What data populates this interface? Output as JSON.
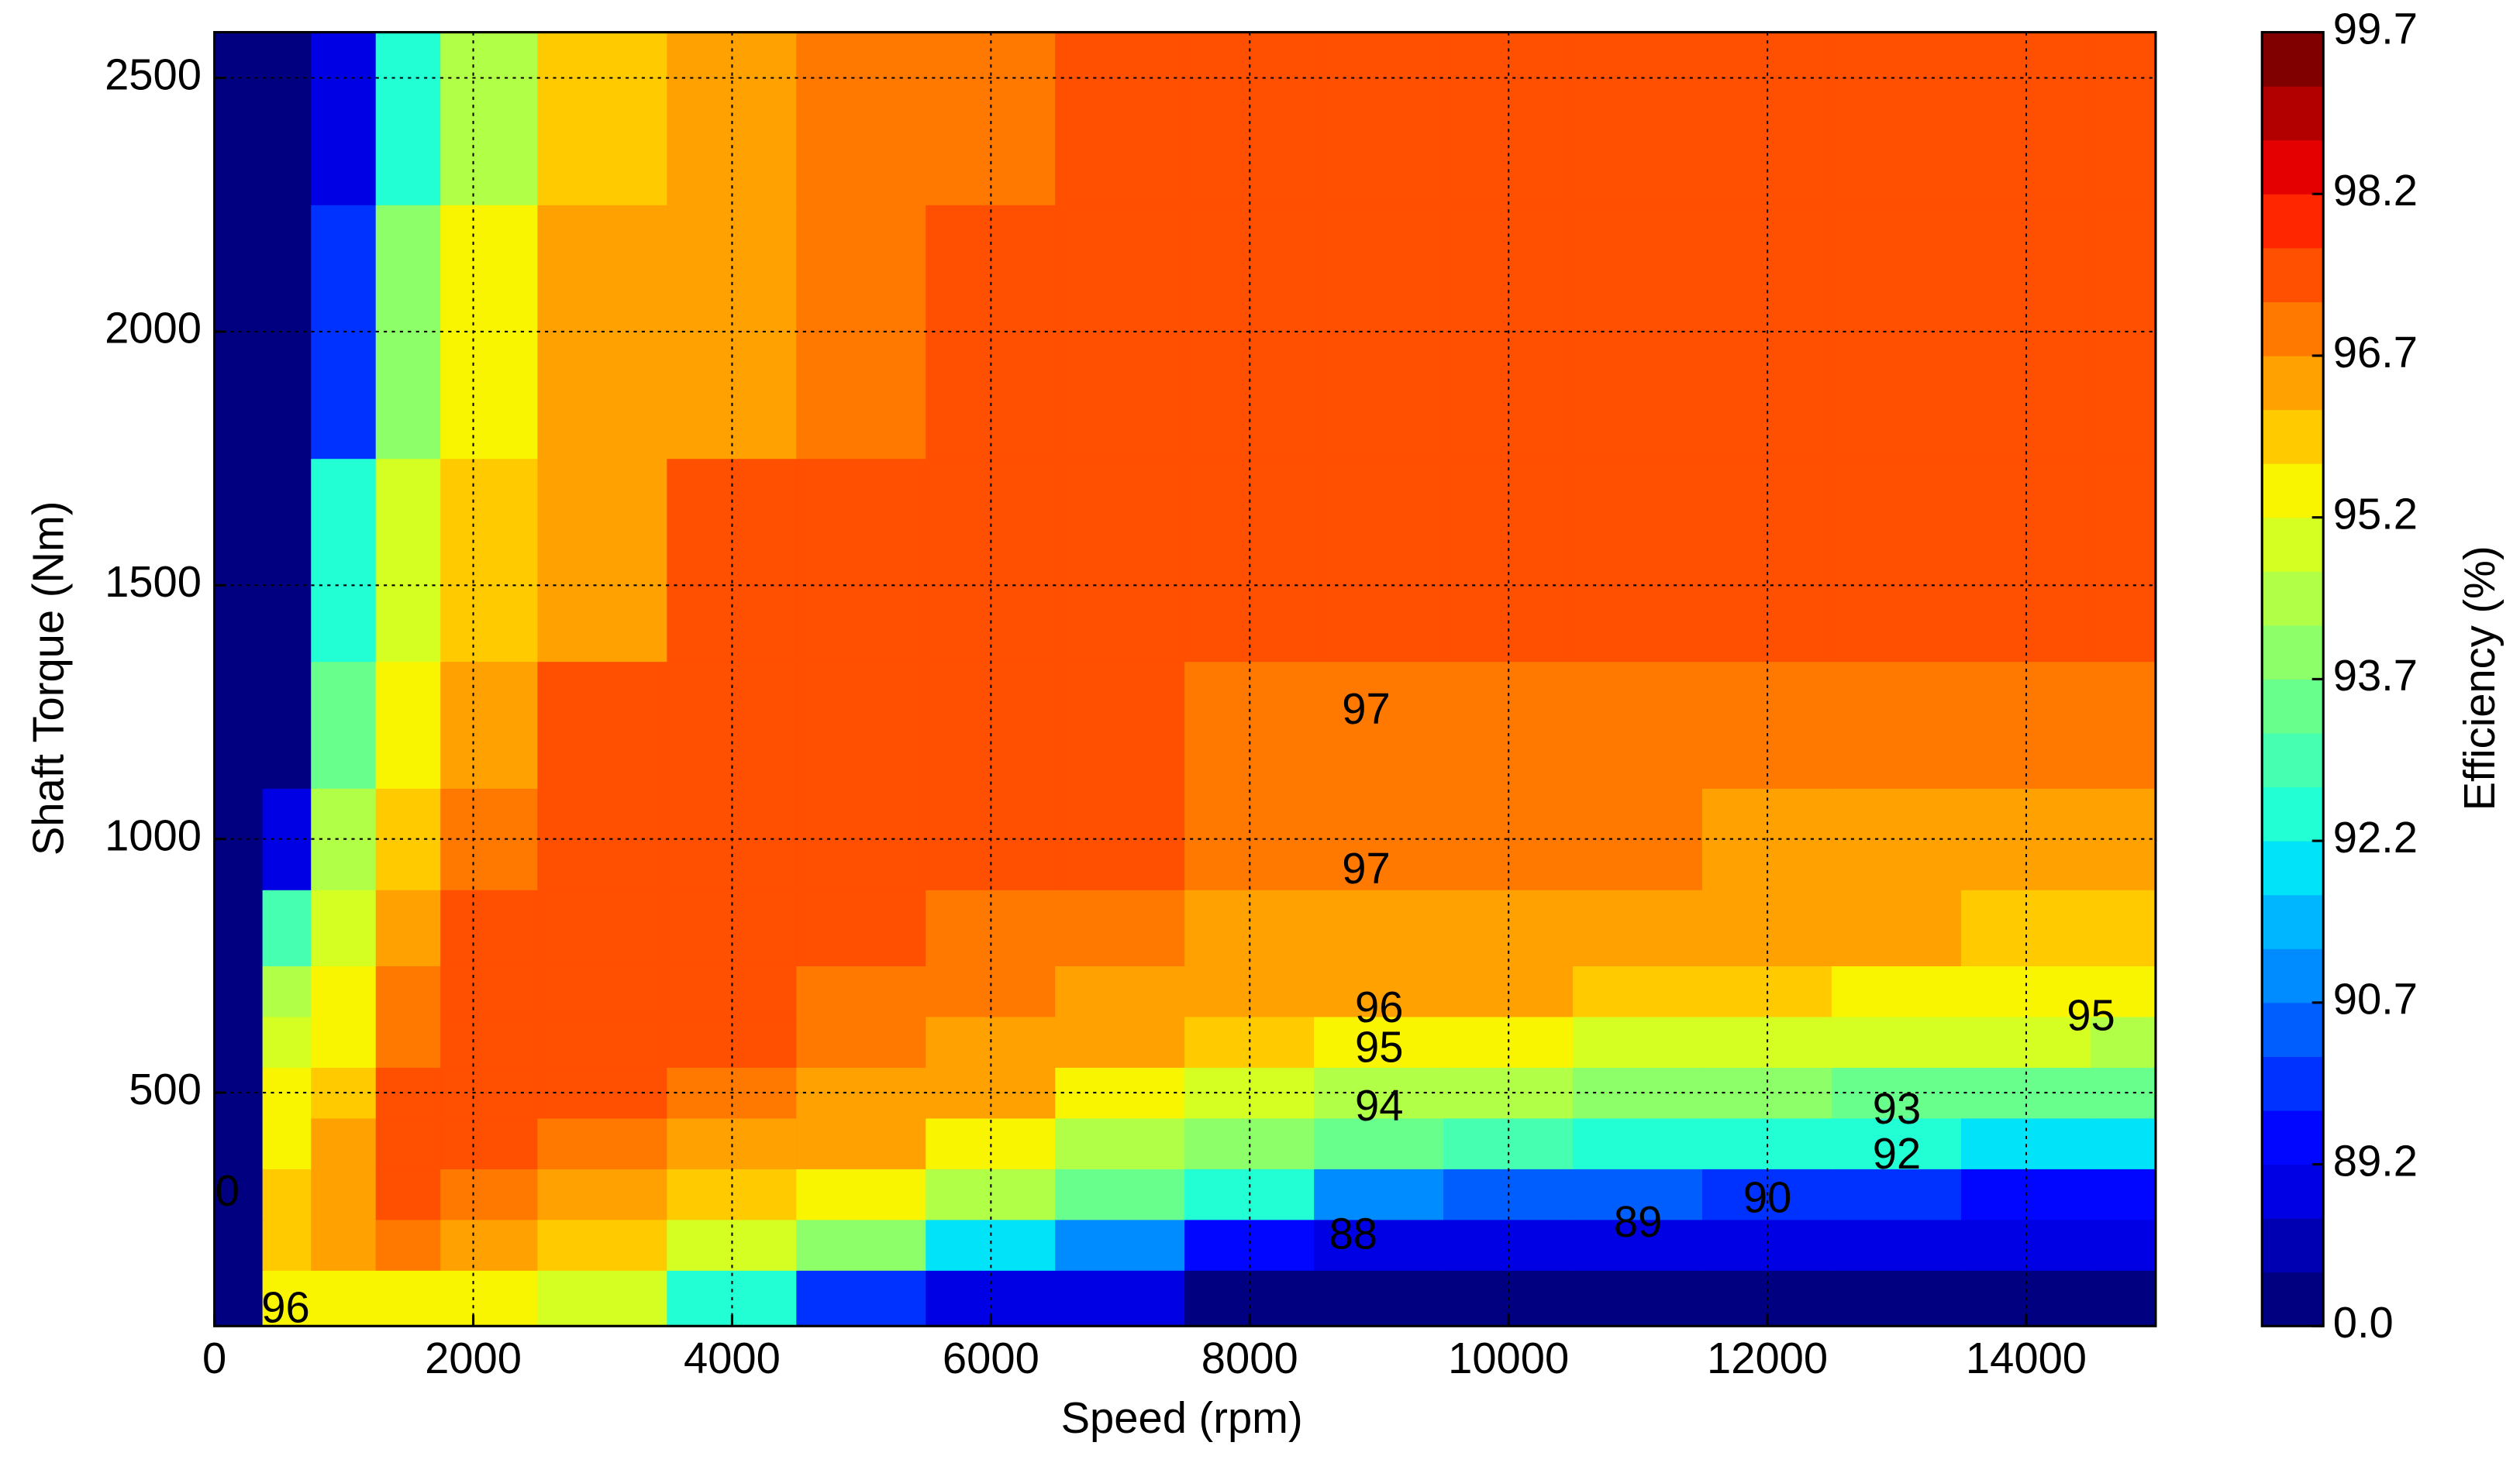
{
  "chart_data": {
    "type": "contour",
    "x_label": "Speed  (rpm)",
    "y_label": "Shaft Torque  (Nm)",
    "colorbar_label": "Efficiency (%)",
    "xlim": [
      0,
      15000
    ],
    "ylim": [
      40,
      2590
    ],
    "xticks": [
      0,
      2000,
      4000,
      6000,
      8000,
      10000,
      12000,
      14000
    ],
    "yticks": [
      500,
      1000,
      1500,
      2000,
      2500
    ],
    "grid": true,
    "colorbar_ticks": [
      {
        "value": 0,
        "label": "0.0"
      },
      89.2,
      90.7,
      92.2,
      93.7,
      95.2,
      96.7,
      98.2,
      99.7
    ],
    "colors": [
      "#000080",
      "#0000b2",
      "#0000e4",
      "#0006ff",
      "#0032ff",
      "#005eff",
      "#008bff",
      "#00b7ff",
      "#00e3f9",
      "#22ffd5",
      "#46ffb1",
      "#69ff8d",
      "#8dff69",
      "#b1ff46",
      "#d5ff22",
      "#f9f400",
      "#ffcb00",
      "#ffa100",
      "#ff7800",
      "#ff4f00",
      "#ff2600",
      "#e40000",
      "#b20000",
      "#800000"
    ],
    "x": [
      0,
      250,
      500,
      1000,
      1500,
      2000,
      3000,
      4000,
      5000,
      6000,
      7000,
      8000,
      9000,
      10000,
      11000,
      12000,
      13000,
      14000,
      15000
    ],
    "y": [
      100,
      200,
      300,
      400,
      500,
      600,
      700,
      800,
      1000,
      1200,
      1500,
      2000,
      2500
    ],
    "z": [
      [
        0,
        0,
        95.5,
        95.5,
        95.5,
        95.5,
        94.8,
        92.5,
        90,
        88,
        85,
        0,
        0,
        0,
        0,
        0,
        0,
        0,
        0
      ],
      [
        0,
        0,
        96,
        96.5,
        96.8,
        96.5,
        96.1,
        94.8,
        94,
        92,
        91,
        89.5,
        88.5,
        87,
        86,
        85,
        84,
        83,
        82
      ],
      [
        0,
        0,
        95.8,
        96.4,
        97.3,
        97.0,
        96.6,
        96.0,
        95.2,
        94.2,
        93.5,
        92.5,
        91,
        90.5,
        90.2,
        90.0,
        89.8,
        89.6,
        89.4
      ],
      [
        0,
        0,
        95.5,
        96.2,
        97.3,
        97.3,
        97.0,
        96.5,
        96.2,
        95.4,
        94.5,
        93.8,
        93.2,
        92.8,
        92.5,
        92.3,
        92.2,
        92.0,
        91.8
      ],
      [
        0,
        0,
        95.3,
        96.0,
        97.2,
        97.4,
        97.3,
        96.9,
        96.6,
        96.3,
        95.4,
        94.8,
        94.5,
        94.2,
        94.0,
        93.8,
        93.6,
        93.4,
        93.2
      ],
      [
        0,
        0,
        95.0,
        95.6,
        96.9,
        97.4,
        97.4,
        97.2,
        96.9,
        96.6,
        96.3,
        95.8,
        95.4,
        95.2,
        95.0,
        94.9,
        94.8,
        94.7,
        94.6
      ],
      [
        0,
        0,
        94.5,
        95.3,
        96.7,
        97.3,
        97.4,
        97.4,
        97.15,
        96.8,
        96.6,
        96.4,
        96.3,
        96.2,
        96.0,
        95.8,
        95.6,
        95.5,
        95.4
      ],
      [
        0,
        0,
        93.0,
        95.0,
        96.5,
        97.2,
        97.4,
        97.4,
        97.4,
        97.1,
        96.8,
        96.65,
        96.5,
        96.4,
        96.35,
        96.25,
        96.2,
        96.1,
        96.05
      ],
      [
        0,
        0,
        85,
        94.2,
        96.0,
        96.9,
        97.4,
        97.4,
        97.4,
        97.4,
        97.2,
        96.9,
        96.8,
        96.75,
        96.7,
        96.6,
        96.6,
        96.5,
        96.45
      ],
      [
        0,
        0,
        0,
        93.5,
        95.6,
        96.6,
        97.2,
        97.4,
        97.4,
        97.4,
        97.4,
        97.15,
        97.0,
        97.0,
        96.95,
        96.9,
        96.85,
        96.8,
        96.75
      ],
      [
        0,
        0,
        0,
        92.5,
        95.0,
        95.8,
        96.6,
        97.3,
        97.4,
        97.4,
        97.4,
        97.4,
        97.4,
        97.4,
        97.35,
        97.3,
        97.3,
        97.25,
        97.2
      ],
      [
        0,
        0,
        0,
        90,
        93.8,
        95.2,
        96.2,
        96.6,
        97.1,
        97.4,
        97.4,
        97.4,
        97.4,
        97.4,
        97.4,
        97.4,
        97.4,
        97.4,
        97.4
      ],
      [
        0,
        0,
        0,
        88,
        92.5,
        94.5,
        95.9,
        96.4,
        96.9,
        97.1,
        97.4,
        97.4,
        97.4,
        97.4,
        97.4,
        97.4,
        97.4,
        97.4,
        97.4
      ]
    ],
    "contour_labels": [
      {
        "text": "97",
        "x": 8900,
        "y": 1250
      },
      {
        "text": "97",
        "x": 8900,
        "y": 935
      },
      {
        "text": "96",
        "x": 9000,
        "y": 662
      },
      {
        "text": "95",
        "x": 9000,
        "y": 583
      },
      {
        "text": "94",
        "x": 9000,
        "y": 468
      },
      {
        "text": "95",
        "x": 14500,
        "y": 646
      },
      {
        "text": "93",
        "x": 13000,
        "y": 462
      },
      {
        "text": "92",
        "x": 13000,
        "y": 373
      },
      {
        "text": "90",
        "x": 12000,
        "y": 287
      },
      {
        "text": "89",
        "x": 11000,
        "y": 239
      },
      {
        "text": "88",
        "x": 8800,
        "y": 215
      },
      {
        "text": "0",
        "x": 100,
        "y": 300
      },
      {
        "text": "96",
        "x": 550,
        "y": 70
      }
    ]
  }
}
